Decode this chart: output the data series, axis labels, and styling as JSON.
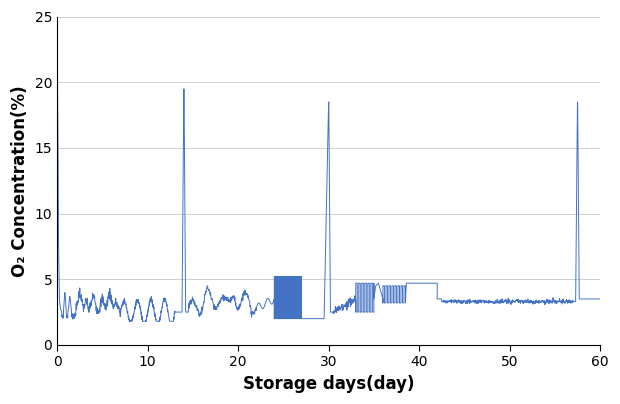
{
  "title": "",
  "xlabel": "Storage days(day)",
  "ylabel": "O₂ Concentration(%)",
  "xlim": [
    0,
    60
  ],
  "ylim": [
    0,
    25
  ],
  "yticks": [
    0,
    5,
    10,
    15,
    20,
    25
  ],
  "xticks": [
    0,
    10,
    20,
    30,
    40,
    50,
    60
  ],
  "line_color": "#4472C4",
  "line_width": 0.7,
  "background_color": "#ffffff",
  "grid_color": "#d0d0d0",
  "xlabel_fontsize": 12,
  "ylabel_fontsize": 12
}
